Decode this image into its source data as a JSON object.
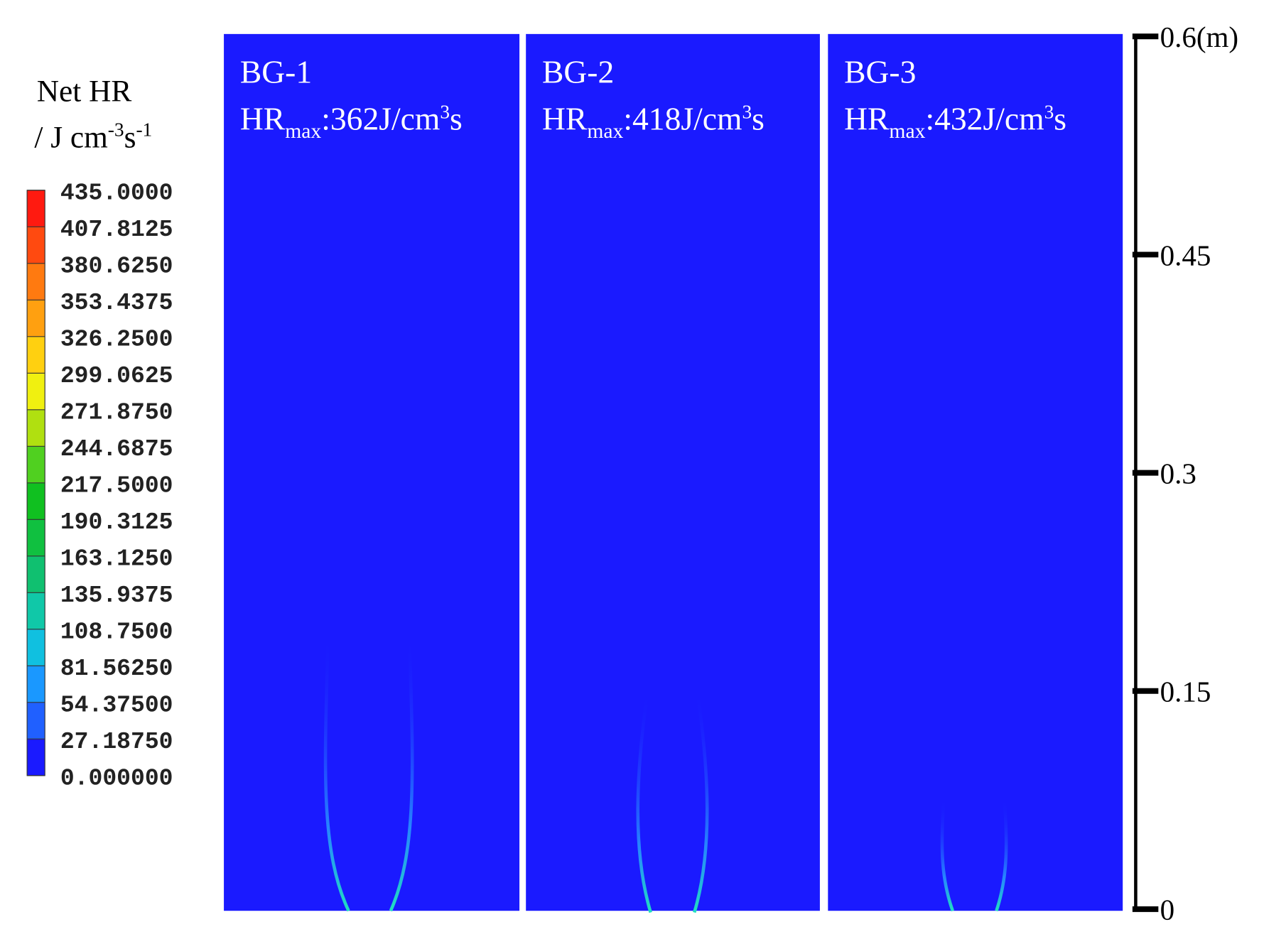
{
  "chart_data": {
    "type": "contour",
    "colorbar": {
      "title": "Net HR",
      "unit": [
        "/ J cm",
        "-3",
        "s",
        "-1"
      ],
      "ticks": [
        {
          "value": 435,
          "label": "435.0000"
        },
        {
          "value": 407.8125,
          "label": "407.8125"
        },
        {
          "value": 380.625,
          "label": "380.6250"
        },
        {
          "value": 353.4375,
          "label": "353.4375"
        },
        {
          "value": 326.25,
          "label": "326.2500"
        },
        {
          "value": 299.0625,
          "label": "299.0625"
        },
        {
          "value": 271.875,
          "label": "271.8750"
        },
        {
          "value": 244.6875,
          "label": "244.6875"
        },
        {
          "value": 217.5,
          "label": "217.5000"
        },
        {
          "value": 190.3125,
          "label": "190.3125"
        },
        {
          "value": 163.125,
          "label": "163.1250"
        },
        {
          "value": 135.9375,
          "label": "135.9375"
        },
        {
          "value": 108.75,
          "label": "108.7500"
        },
        {
          "value": 81.5625,
          "label": "81.56250"
        },
        {
          "value": 54.375,
          "label": "54.37500"
        },
        {
          "value": 27.1875,
          "label": "27.18750"
        },
        {
          "value": 0,
          "label": "0.000000"
        }
      ],
      "colors": [
        "#ff1a10",
        "#ff4a10",
        "#ff7a10",
        "#ffa010",
        "#ffd010",
        "#f0f010",
        "#b0e010",
        "#50d020",
        "#10c020",
        "#10c040",
        "#10c070",
        "#10c8a8",
        "#10c0e0",
        "#1a98ff",
        "#2060ff",
        "#1a1aff"
      ]
    },
    "panels": [
      {
        "title": "BG-1",
        "hr_max": [
          "HR",
          "max",
          ":362J/cm",
          "3",
          "s"
        ]
      },
      {
        "title": "BG-2",
        "hr_max": [
          "HR",
          "max",
          ":418J/cm",
          "3",
          "s"
        ]
      },
      {
        "title": "BG-3",
        "hr_max": [
          "HR",
          "max",
          ":432J/cm",
          "3",
          "s"
        ]
      }
    ],
    "ylim": [
      0,
      0.6
    ],
    "yticks": [
      0,
      0.15,
      0.3,
      0.45,
      {
        "value": 0.6,
        "label": "0.6(m)"
      }
    ]
  }
}
